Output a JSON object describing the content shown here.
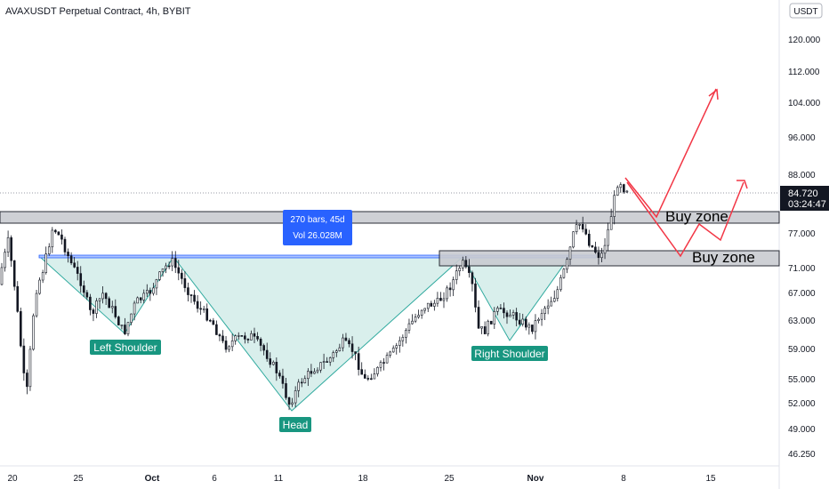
{
  "header": {
    "title": "AVAXUSDT Perpetual Contract, 4h, BYBIT"
  },
  "price_scale": {
    "currency_label": "USDT",
    "last_price": "84.720",
    "countdown": "03:24:47",
    "tick_labels": [
      "120.000",
      "112.000",
      "104.000",
      "96.000",
      "88.000",
      "77.000",
      "71.000",
      "67.000",
      "63.000",
      "59.000",
      "55.000",
      "52.000",
      "49.000",
      "46.250"
    ]
  },
  "time_axis": {
    "tick_labels": [
      "20",
      "25",
      "Oct",
      "6",
      "11",
      "18",
      "25",
      "Nov",
      "8",
      "15"
    ]
  },
  "annotations": {
    "measure_box": {
      "line1": "270 bars, 45d",
      "line2": "Vol 26.028M"
    },
    "buy_zone_upper": "Buy zone",
    "buy_zone_lower": "Buy zone",
    "left_shoulder": "Left Shoulder",
    "head": "Head",
    "right_shoulder": "Right Shoulder"
  },
  "colors": {
    "bull_candle": "#ffffff",
    "bear_candle": "#131722",
    "pattern_fill": "#d8efec",
    "pattern_line": "#26a69a",
    "label_bg": "#189680",
    "zone_fill": "#c9cbd1",
    "measure_bg": "#2962ff",
    "projection": "#f23645",
    "price_tag": "#131722"
  },
  "chart_data": {
    "type": "candlestick",
    "title": "AVAXUSDT Perpetual Contract, 4h, BYBIT",
    "yscale": "log",
    "ylim": [
      45.5,
      128
    ],
    "last_price": 84.72,
    "key_points": [
      {
        "date": "Sep 18",
        "price": 64
      },
      {
        "date": "Sep 19",
        "price": 56
      },
      {
        "date": "Sep 23",
        "price": 78.5
      },
      {
        "date": "Sep 28",
        "price": 62
      },
      {
        "date": "Oct 3",
        "price": 74.5
      },
      {
        "date": "Oct 12",
        "price": 51.5
      },
      {
        "date": "Oct 18",
        "price": 57.5
      },
      {
        "date": "Oct 25",
        "price": 74
      },
      {
        "date": "Oct 29",
        "price": 60
      },
      {
        "date": "Nov 1",
        "price": 62
      },
      {
        "date": "Nov 4",
        "price": 79
      },
      {
        "date": "Nov 6",
        "price": 74
      },
      {
        "date": "Nov 8",
        "price": 88
      },
      {
        "date": "Nov 8",
        "price": 84.72
      }
    ],
    "zones": [
      {
        "name": "Buy zone",
        "from": 78.8,
        "to": 81.2
      },
      {
        "name": "Buy zone",
        "from": 71.8,
        "to": 73.6
      }
    ],
    "neckline": 73.3,
    "pattern": "inverse head and shoulders",
    "projection_paths": [
      [
        {
          "date": "Nov 8",
          "price": 86.5
        },
        {
          "date": "Nov 10",
          "price": 80.5
        },
        {
          "date": "Nov 15",
          "price": 111
        }
      ],
      [
        {
          "date": "Nov 8",
          "price": 86
        },
        {
          "date": "Nov 11",
          "price": 73.6
        },
        {
          "date": "Nov 14",
          "price": 77.7
        },
        {
          "date": "Nov 16",
          "price": 76
        },
        {
          "date": "Nov 17",
          "price": 86.5
        }
      ]
    ]
  }
}
